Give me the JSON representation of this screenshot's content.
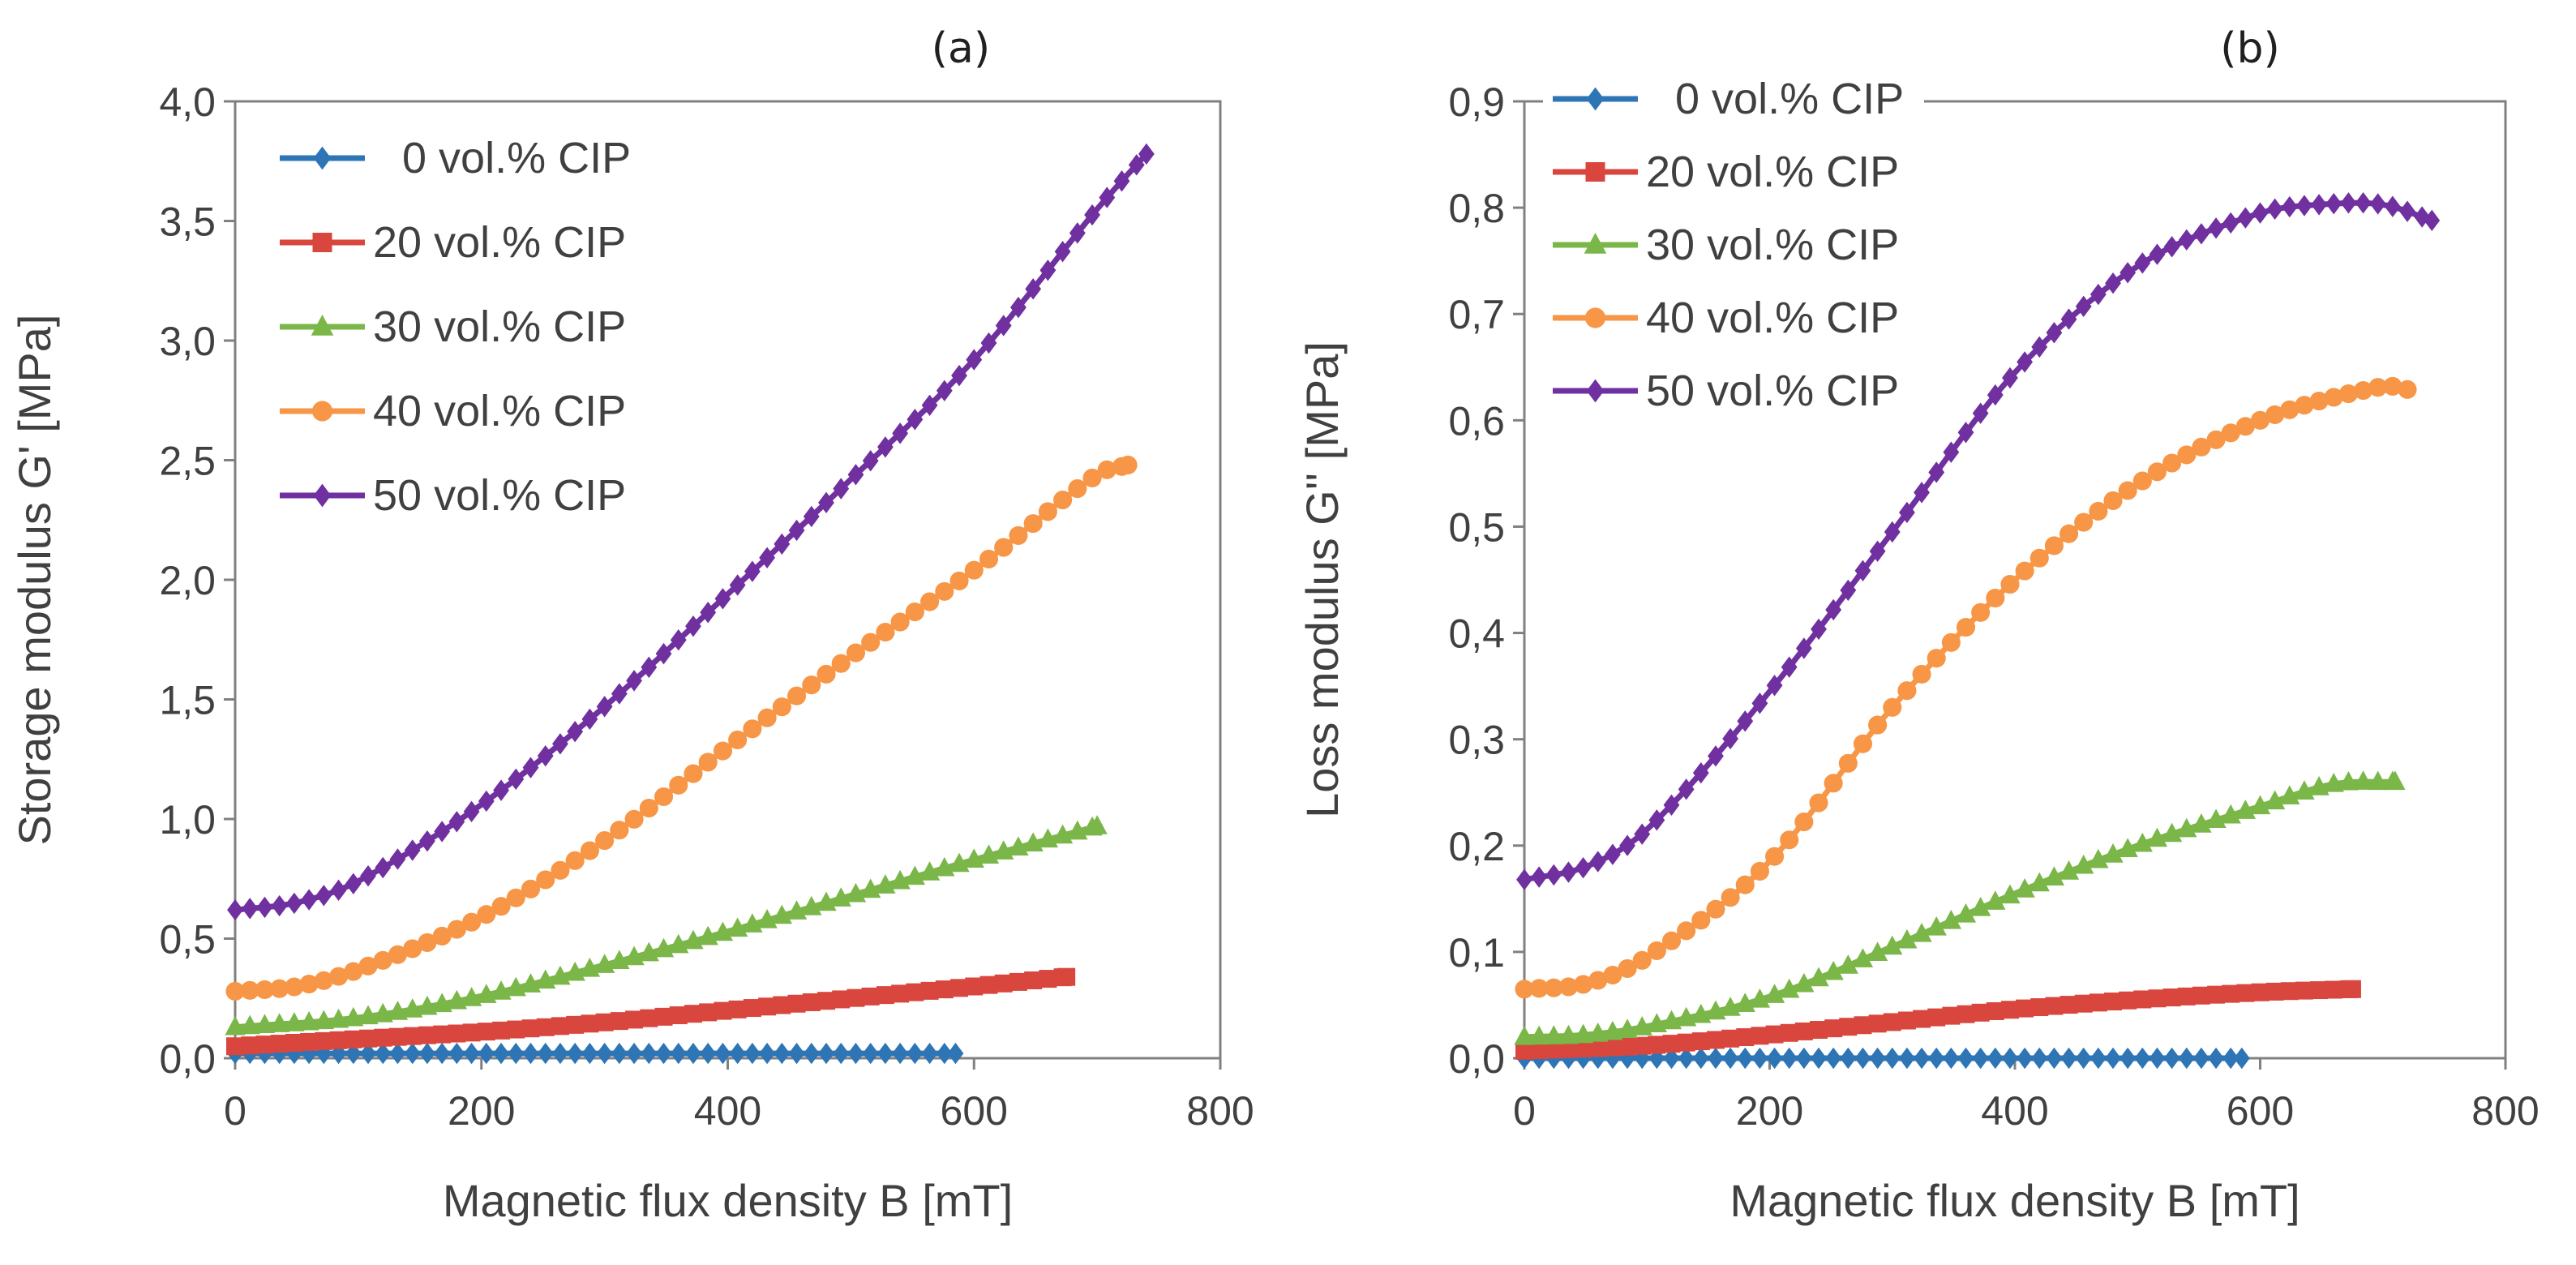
{
  "chart_data": [
    {
      "type": "line",
      "panel_label": "(a)",
      "title": "",
      "xlabel": "Magnetic flux density B [mT]",
      "ylabel": "Storage modulus G' [MPa]",
      "xlim": [
        0,
        800
      ],
      "ylim": [
        0,
        4.0
      ],
      "xticks": [
        0,
        200,
        400,
        600,
        800
      ],
      "xtick_labels": [
        "0",
        "200",
        "400",
        "600",
        "800"
      ],
      "yticks": [
        0,
        0.5,
        1.0,
        1.5,
        2.0,
        2.5,
        3.0,
        3.5,
        4.0
      ],
      "ytick_labels": [
        "0,0",
        "0,5",
        "1,0",
        "1,5",
        "2,0",
        "2,5",
        "3,0",
        "3,5",
        "4,0"
      ],
      "grid": false,
      "legend_position": "top-left",
      "series": [
        {
          "name": "0 vol.% CIP",
          "color": "#2e75b6",
          "marker": "diamond",
          "xmax": 585,
          "points": [
            [
              0,
              0.02
            ],
            [
              300,
              0.02
            ],
            [
              585,
              0.02
            ]
          ]
        },
        {
          "name": "20 vol.% CIP",
          "color": "#d9463e",
          "marker": "square",
          "xmax": 675,
          "points": [
            [
              0,
              0.05
            ],
            [
              100,
              0.08
            ],
            [
              200,
              0.11
            ],
            [
              300,
              0.15
            ],
            [
              400,
              0.2
            ],
            [
              500,
              0.25
            ],
            [
              600,
              0.3
            ],
            [
              675,
              0.34
            ]
          ]
        },
        {
          "name": "30 vol.% CIP",
          "color": "#7ab648",
          "marker": "triangle",
          "xmax": 700,
          "points": [
            [
              0,
              0.13
            ],
            [
              100,
              0.17
            ],
            [
              200,
              0.26
            ],
            [
              300,
              0.39
            ],
            [
              400,
              0.53
            ],
            [
              500,
              0.68
            ],
            [
              600,
              0.83
            ],
            [
              700,
              0.97
            ]
          ]
        },
        {
          "name": "40 vol.% CIP",
          "color": "#f79646",
          "marker": "circle",
          "xmax": 725,
          "points": [
            [
              0,
              0.28
            ],
            [
              50,
              0.3
            ],
            [
              100,
              0.37
            ],
            [
              200,
              0.59
            ],
            [
              300,
              0.91
            ],
            [
              400,
              1.3
            ],
            [
              500,
              1.68
            ],
            [
              600,
              2.04
            ],
            [
              700,
              2.44
            ],
            [
              725,
              2.48
            ]
          ]
        },
        {
          "name": "50 vol.% CIP",
          "color": "#7030a0",
          "marker": "diamond",
          "xmax": 740,
          "points": [
            [
              0,
              0.62
            ],
            [
              50,
              0.65
            ],
            [
              100,
              0.74
            ],
            [
              200,
              1.06
            ],
            [
              300,
              1.47
            ],
            [
              400,
              1.94
            ],
            [
              500,
              2.42
            ],
            [
              600,
              2.92
            ],
            [
              700,
              3.55
            ],
            [
              740,
              3.78
            ]
          ]
        }
      ]
    },
    {
      "type": "line",
      "panel_label": "(b)",
      "title": "",
      "xlabel": "Magnetic flux density B [mT]",
      "ylabel": "Loss modulus G'' [MPa]",
      "xlim": [
        0,
        800
      ],
      "ylim": [
        0,
        0.9
      ],
      "xticks": [
        0,
        200,
        400,
        600,
        800
      ],
      "xtick_labels": [
        "0",
        "200",
        "400",
        "600",
        "800"
      ],
      "yticks": [
        0,
        0.1,
        0.2,
        0.3,
        0.4,
        0.5,
        0.6,
        0.7,
        0.8,
        0.9
      ],
      "ytick_labels": [
        "0,0",
        "0,1",
        "0,2",
        "0,3",
        "0,4",
        "0,5",
        "0,6",
        "0,7",
        "0,8",
        "0,9"
      ],
      "grid": false,
      "legend_position": "top-left",
      "series": [
        {
          "name": "0 vol.% CIP",
          "color": "#2e75b6",
          "marker": "diamond",
          "xmax": 585,
          "points": [
            [
              0,
              0.0
            ],
            [
              300,
              0.0
            ],
            [
              585,
              0.0
            ]
          ]
        },
        {
          "name": "20 vol.% CIP",
          "color": "#d9463e",
          "marker": "square",
          "xmax": 675,
          "points": [
            [
              0,
              0.007
            ],
            [
              100,
              0.012
            ],
            [
              200,
              0.022
            ],
            [
              300,
              0.034
            ],
            [
              400,
              0.046
            ],
            [
              500,
              0.055
            ],
            [
              600,
              0.062
            ],
            [
              675,
              0.065
            ]
          ]
        },
        {
          "name": "30 vol.% CIP",
          "color": "#7ab648",
          "marker": "triangle",
          "xmax": 710,
          "points": [
            [
              0,
              0.02
            ],
            [
              50,
              0.022
            ],
            [
              100,
              0.03
            ],
            [
              200,
              0.058
            ],
            [
              300,
              0.105
            ],
            [
              400,
              0.155
            ],
            [
              500,
              0.2
            ],
            [
              600,
              0.237
            ],
            [
              660,
              0.258
            ],
            [
              710,
              0.26
            ]
          ]
        },
        {
          "name": "40 vol.% CIP",
          "color": "#f79646",
          "marker": "circle",
          "xmax": 720,
          "points": [
            [
              0,
              0.065
            ],
            [
              50,
              0.07
            ],
            [
              100,
              0.095
            ],
            [
              200,
              0.185
            ],
            [
              300,
              0.33
            ],
            [
              400,
              0.45
            ],
            [
              500,
              0.54
            ],
            [
              600,
              0.6
            ],
            [
              700,
              0.632
            ],
            [
              720,
              0.629
            ]
          ]
        },
        {
          "name": "50 vol.% CIP",
          "color": "#7030a0",
          "marker": "diamond",
          "xmax": 740,
          "points": [
            [
              0,
              0.168
            ],
            [
              50,
              0.18
            ],
            [
              100,
              0.215
            ],
            [
              200,
              0.345
            ],
            [
              300,
              0.495
            ],
            [
              400,
              0.645
            ],
            [
              500,
              0.745
            ],
            [
              600,
              0.795
            ],
            [
              650,
              0.803
            ],
            [
              700,
              0.803
            ],
            [
              740,
              0.788
            ]
          ]
        }
      ]
    }
  ]
}
